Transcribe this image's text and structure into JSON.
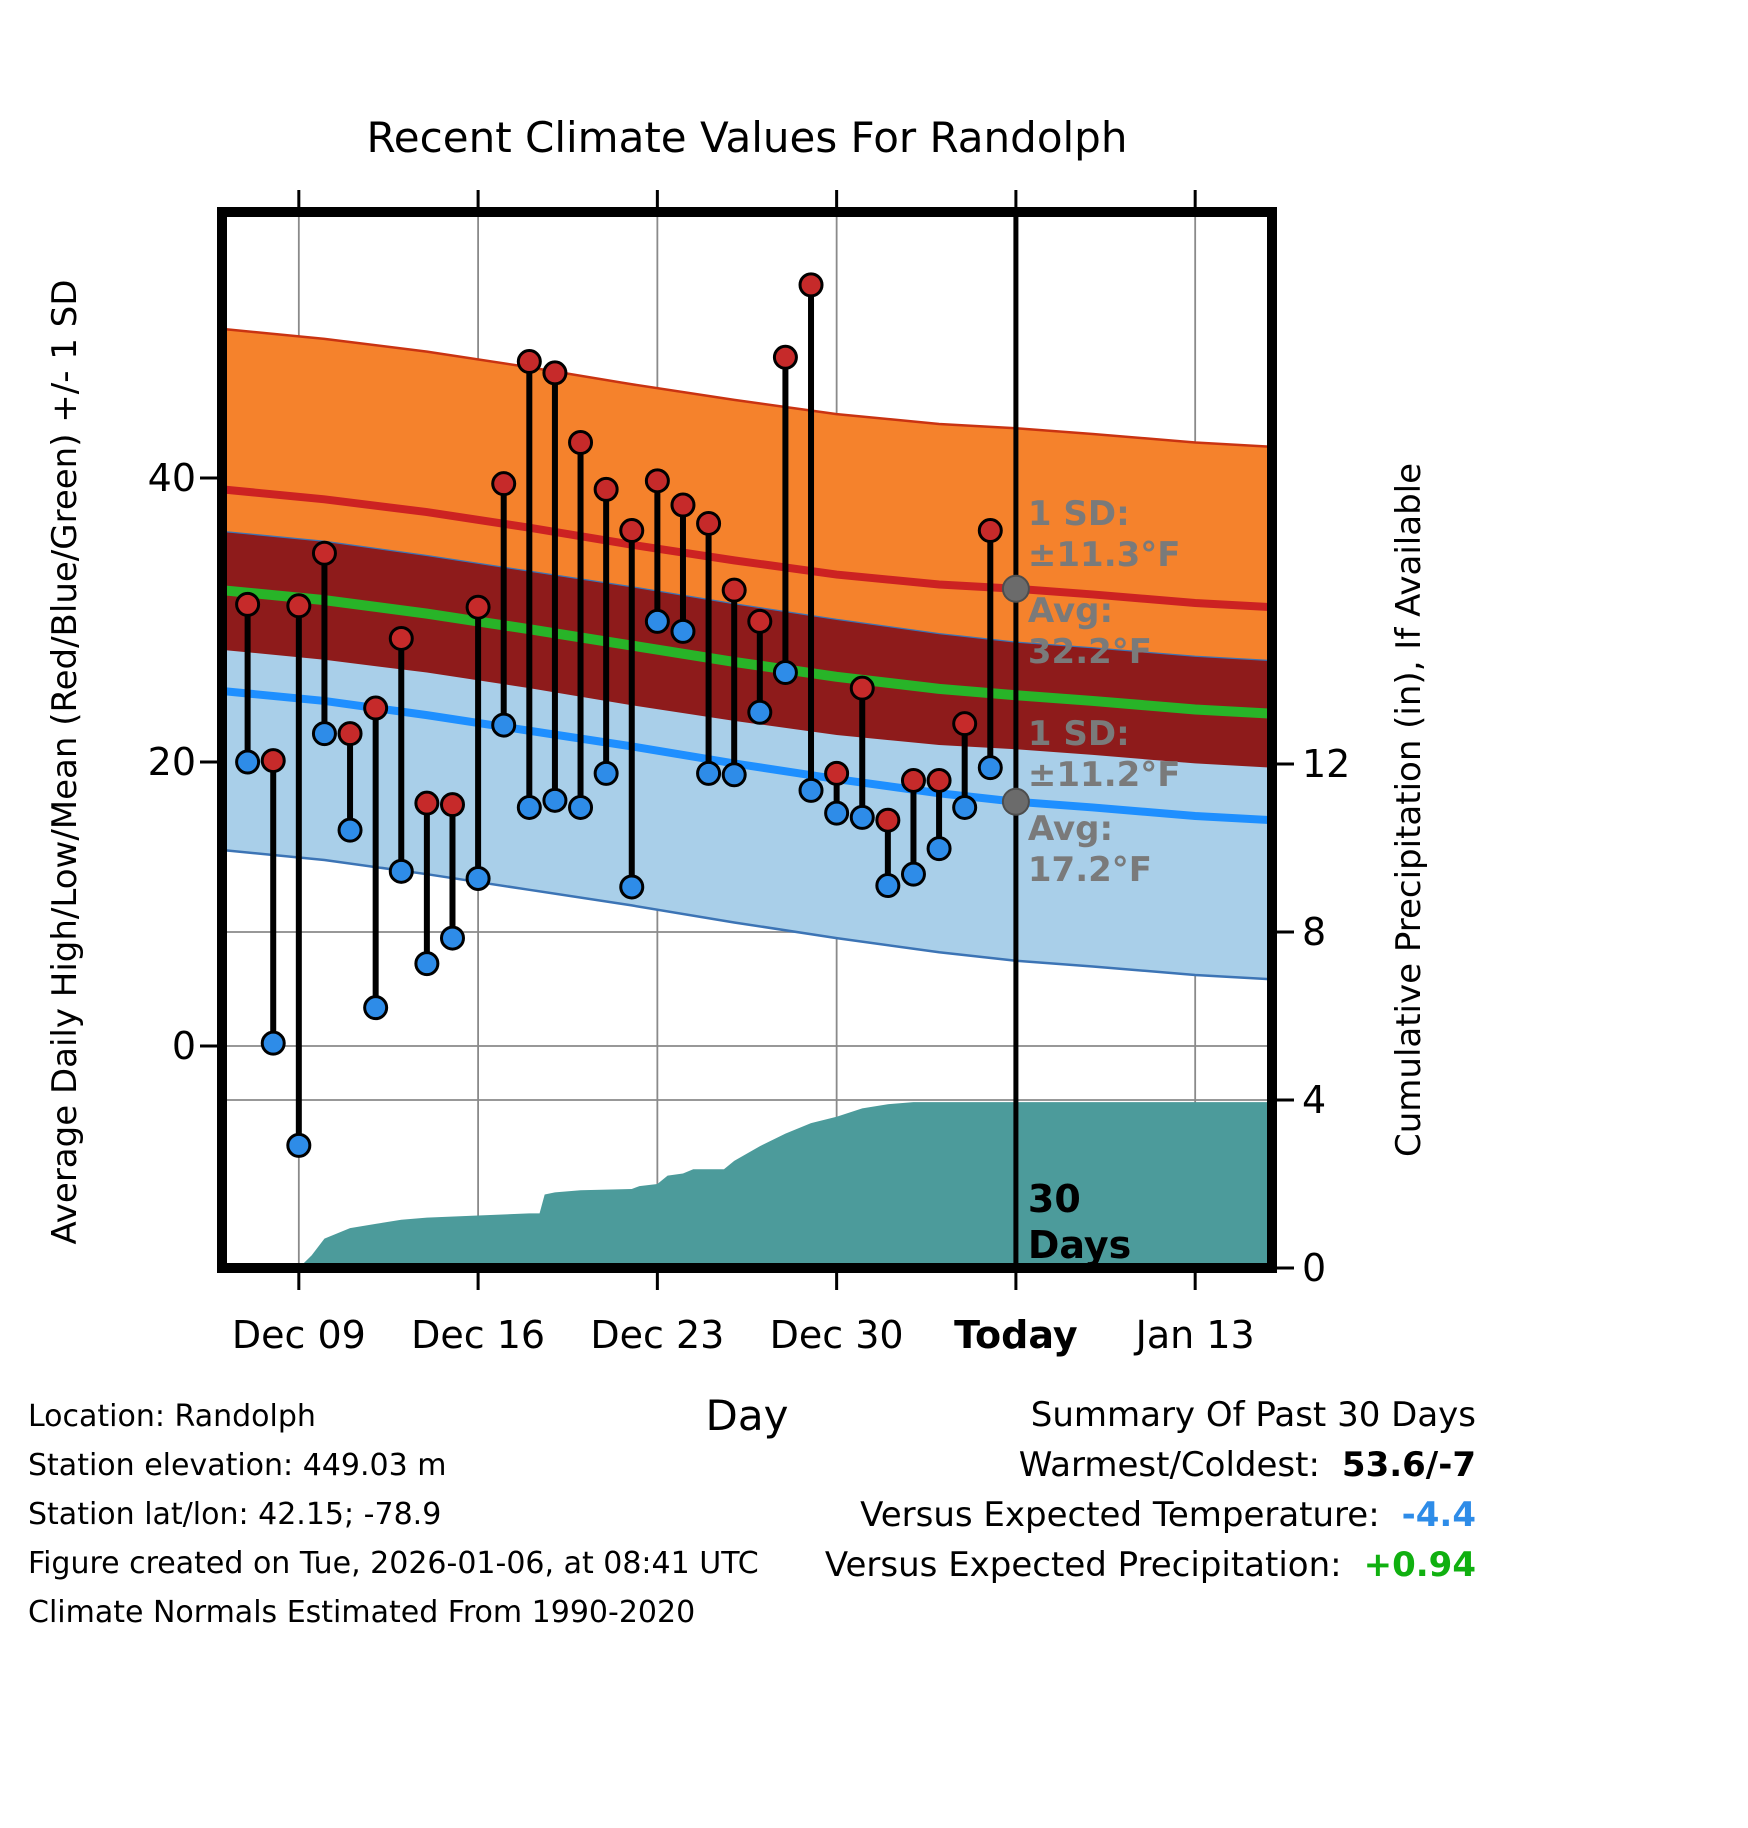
{
  "footer": {
    "lines": [
      "Location: Randolph",
      "Station elevation: 449.03 m",
      "Station lat/lon: 42.15; -78.9",
      "Figure created on Tue, 2026-01-06, at 08:41 UTC",
      "Climate Normals Estimated From 1990-2020"
    ]
  },
  "summary": {
    "heading": "Summary Of Past 30 Days",
    "warmest_coldest_label": "Warmest/Coldest:",
    "warmest_coldest_value": "53.6/-7",
    "vs_temp_label": "Versus Expected Temperature:",
    "vs_temp_value": "-4.4",
    "vs_precip_label": "Versus Expected Precipitation:",
    "vs_precip_value": "+0.94"
  },
  "chart_data": {
    "type": "line",
    "title": "Recent Climate Values For Randolph",
    "xlabel": "Day",
    "ylabel_left": "Average Daily High/Low/Mean (Red/Blue/Green) +/- 1 SD",
    "ylabel_right": "Cumulative Precipitation (in), If Available",
    "x_domain": [
      0,
      41
    ],
    "today_day": 31,
    "x_ticks": [
      {
        "day": 3,
        "label": "Dec 09",
        "bold": false
      },
      {
        "day": 10,
        "label": "Dec 16",
        "bold": false
      },
      {
        "day": 17,
        "label": "Dec 23",
        "bold": false
      },
      {
        "day": 24,
        "label": "Dec 30",
        "bold": false
      },
      {
        "day": 31,
        "label": "Today",
        "bold": true
      },
      {
        "day": 38,
        "label": "Jan 13",
        "bold": false
      }
    ],
    "temp_axis": {
      "ticks": [
        0,
        20,
        40
      ],
      "range": [
        -15.6,
        58.7
      ]
    },
    "precip_axis": {
      "ticks": [
        0,
        4,
        8,
        12
      ],
      "range": [
        0,
        25.1
      ]
    },
    "normals": {
      "days": [
        0,
        4,
        8,
        12,
        16,
        20,
        24,
        28,
        31,
        34,
        38,
        41
      ],
      "high_avg": [
        39.2,
        38.5,
        37.6,
        36.5,
        35.3,
        34.2,
        33.2,
        32.5,
        32.2,
        31.8,
        31.2,
        30.9
      ],
      "low_avg": [
        25.0,
        24.3,
        23.3,
        22.2,
        21.1,
        19.9,
        18.8,
        17.8,
        17.2,
        16.8,
        16.2,
        15.9
      ],
      "high_sd": 11.3,
      "low_sd": 11.2
    },
    "daily": {
      "days": [
        1,
        2,
        3,
        4,
        5,
        6,
        7,
        8,
        9,
        10,
        11,
        12,
        13,
        14,
        15,
        16,
        17,
        18,
        19,
        20,
        21,
        22,
        23,
        24,
        25,
        26,
        27,
        28,
        29,
        30
      ],
      "high": [
        31.1,
        20.1,
        31.0,
        34.7,
        22.0,
        23.8,
        28.7,
        17.1,
        17.0,
        30.9,
        39.6,
        48.2,
        47.4,
        42.5,
        39.2,
        36.3,
        39.8,
        38.1,
        36.8,
        32.1,
        29.9,
        48.5,
        53.6,
        19.2,
        25.2,
        15.9,
        18.7,
        18.7,
        22.7,
        36.3
      ],
      "low": [
        20.0,
        0.2,
        -7.0,
        22.0,
        15.2,
        2.7,
        12.3,
        5.8,
        7.6,
        11.8,
        22.6,
        16.8,
        17.3,
        16.8,
        19.2,
        11.2,
        29.9,
        29.2,
        19.2,
        19.1,
        23.5,
        26.3,
        18.0,
        16.4,
        16.1,
        11.3,
        12.1,
        13.9,
        16.8,
        19.6
      ]
    },
    "precip_cumulative": {
      "days": [
        3,
        3.5,
        4,
        5,
        6,
        7,
        8,
        10,
        12,
        12.4,
        12.6,
        13,
        14,
        16,
        16.3,
        17,
        17.4,
        18,
        18.4,
        19.6,
        20,
        21,
        22,
        23,
        24,
        25,
        26,
        27,
        41
      ],
      "values": [
        0,
        0.3,
        0.7,
        0.95,
        1.05,
        1.15,
        1.2,
        1.25,
        1.3,
        1.3,
        1.75,
        1.8,
        1.85,
        1.88,
        1.95,
        2.0,
        2.2,
        2.25,
        2.35,
        2.35,
        2.55,
        2.9,
        3.2,
        3.45,
        3.6,
        3.8,
        3.9,
        3.95,
        3.95
      ]
    },
    "annotations": {
      "high_sd_label": [
        "1 SD:",
        "±11.3°F"
      ],
      "high_avg_label": [
        "Avg:",
        " 32.2°F"
      ],
      "low_sd_label": [
        "1 SD:",
        "±11.2°F"
      ],
      "low_avg_label": [
        "Avg:",
        " 17.2°F"
      ],
      "today_label": [
        "30",
        "Days"
      ],
      "avg_high_marker": {
        "day": 31,
        "value": 32.2
      },
      "avg_low_marker": {
        "day": 31,
        "value": 17.2
      }
    },
    "colors": {
      "band_high": "#F5822C",
      "band_low": "#A9CFE9",
      "band_overlap": "#8E1B1B",
      "band_high_edge": "#C93312",
      "band_low_edge": "#3C74B5",
      "line_high_avg": "#CC2222",
      "line_low_avg": "#1E8FFF",
      "line_mean": "#28B428",
      "dot_high": "#C62A2A",
      "dot_low": "#2E8CE8",
      "precip_fill": "#4C9B9B",
      "today_line": "#000000",
      "annotation_gray": "#7A7A7A",
      "grid": "#8A8A8A",
      "summary_temp": "#2E8CE8",
      "summary_precip": "#10B010"
    }
  }
}
